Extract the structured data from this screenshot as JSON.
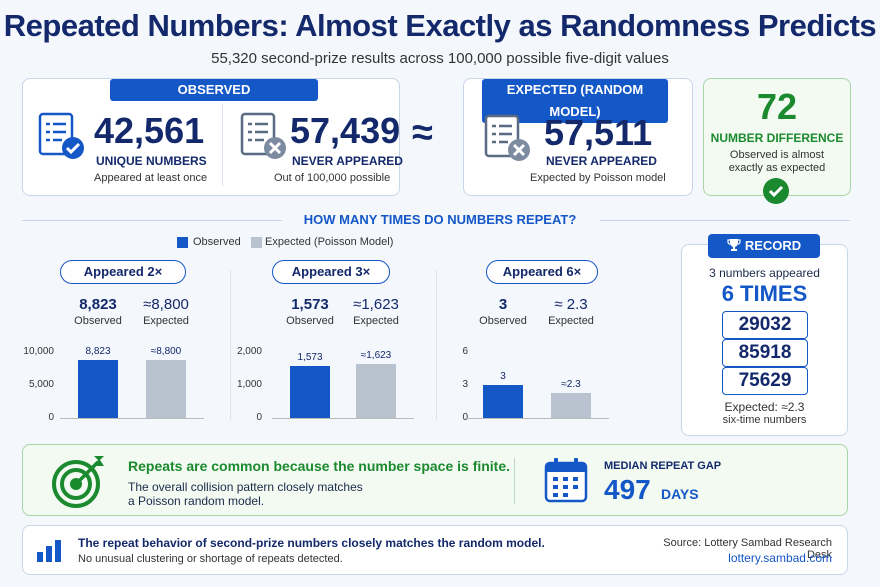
{
  "header": {
    "title": "Repeated Numbers: Almost Exactly as Randomness Predicts",
    "subtitle": "55,320 second-prize results across 100,000 possible five-digit values"
  },
  "observed": {
    "label": "OBSERVED",
    "unique": {
      "value": "42,561",
      "caption": "UNIQUE NUMBERS",
      "note": "Appeared at least once"
    },
    "never": {
      "value": "57,439",
      "caption": "NEVER APPEARED",
      "note": "Out of 100,000 possible"
    }
  },
  "approx_symbol": "≈",
  "expected": {
    "label": "EXPECTED (RANDOM MODEL)",
    "value": "57,511",
    "caption": "NEVER APPEARED",
    "note": "Expected by Poisson model"
  },
  "difference": {
    "value": "72",
    "caption": "NUMBER DIFFERENCE",
    "note_line1": "Observed is almost",
    "note_line2": "exactly as expected"
  },
  "repeat_section": {
    "heading": "HOW MANY TIMES DO NUMBERS REPEAT?",
    "legend_observed": "Observed",
    "legend_expected": "Expected (Poisson Model)"
  },
  "chart_data": [
    {
      "type": "bar",
      "title": "Appeared 2×",
      "observed_value": "8,823",
      "observed_label": "Observed",
      "expected_value": "≈8,800",
      "expected_label": "Expected",
      "categories": [
        "Observed",
        "Expected"
      ],
      "values": [
        8823,
        8800
      ],
      "data_labels": [
        "8,823",
        "≈8,800"
      ],
      "yticks": [
        "10,000",
        "5,000",
        "0"
      ],
      "ylim": [
        0,
        10000
      ]
    },
    {
      "type": "bar",
      "title": "Appeared 3×",
      "observed_value": "1,573",
      "observed_label": "Observed",
      "expected_value": "≈1,623",
      "expected_label": "Expected",
      "categories": [
        "Observed",
        "Expected"
      ],
      "values": [
        1573,
        1623
      ],
      "data_labels": [
        "1,573",
        "≈1,623"
      ],
      "yticks": [
        "2,000",
        "1,000",
        "0"
      ],
      "ylim": [
        0,
        2000
      ]
    },
    {
      "type": "bar",
      "title": "Appeared 6×",
      "observed_value": "3",
      "observed_label": "Observed",
      "expected_value": "≈ 2.3",
      "expected_label": "Expected",
      "categories": [
        "Observed",
        "Expected"
      ],
      "values": [
        3,
        2.3
      ],
      "data_labels": [
        "3",
        "≈2.3"
      ],
      "yticks": [
        "6",
        "3",
        "0"
      ],
      "ylim": [
        0,
        6
      ]
    }
  ],
  "record": {
    "label": "RECORD",
    "line1": "3 numbers appeared",
    "big": "6 TIMES",
    "numbers": [
      "29032",
      "85918",
      "75629"
    ],
    "note_line1": "Expected: ≈2.3",
    "note_line2": "six-time numbers"
  },
  "insight": {
    "headline": "Repeats are common because the number space is finite.",
    "body_line1": "The overall collision pattern closely matches",
    "body_line2": "a Poisson random model.",
    "gap_label": "MEDIAN REPEAT GAP",
    "gap_value": "497",
    "gap_unit": "DAYS"
  },
  "footer": {
    "headline": "The repeat behavior of second-prize numbers closely matches the random model.",
    "sub": "No unusual clustering or shortage of repeats detected.",
    "source": "Source: Lottery Sambad Research Desk",
    "site": "lottery.sambad.com"
  },
  "colors": {
    "accent": "#1457c7",
    "navy": "#13296b",
    "green": "#1b8a2e",
    "expected_bar": "#b8c3cf"
  }
}
